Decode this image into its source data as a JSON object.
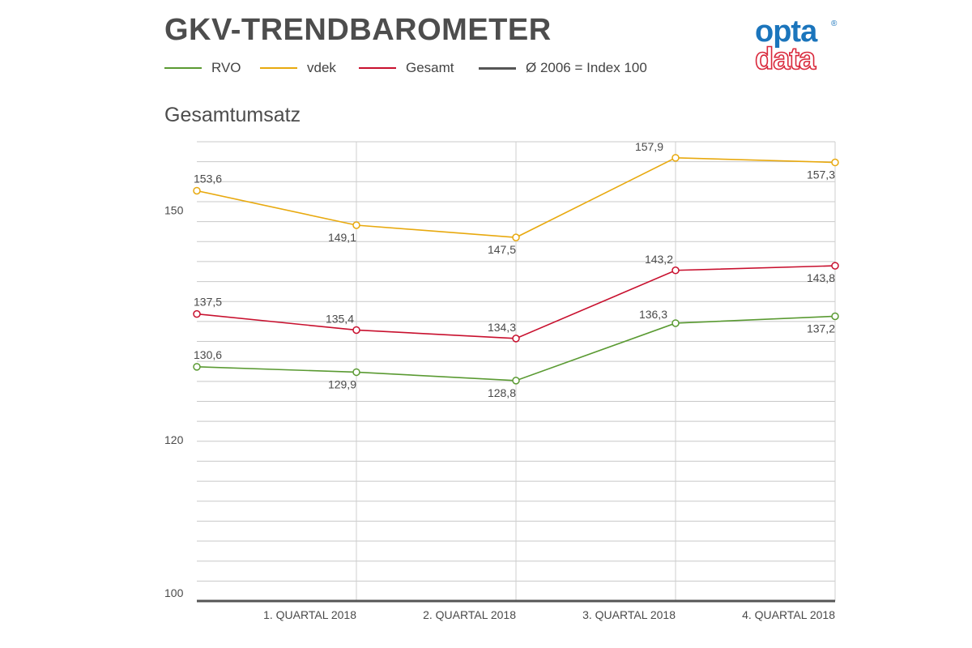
{
  "header": {
    "title": "GKV-TRENDBAROMETER",
    "subtitle": "Gesamtumsatz"
  },
  "logo": {
    "top": "opta",
    "bottom": "data",
    "registered": "®",
    "colors": {
      "top": "#1b75bc",
      "bottom": "#d9283b"
    }
  },
  "legend": [
    {
      "label": "RVO",
      "color": "#5a9a32"
    },
    {
      "label": "vdek",
      "color": "#e8a90e"
    },
    {
      "label": "Gesamt",
      "color": "#c8102e"
    },
    {
      "label": "Ø 2006 = Index 100",
      "color": "#555555"
    }
  ],
  "chart_data": {
    "type": "line",
    "categories": [
      "",
      "1. QUARTAL 2018",
      "2. QUARTAL 2018",
      "3. QUARTAL 2018",
      "4. QUARTAL 2018"
    ],
    "ylim": [
      100,
      160
    ],
    "yticks": [
      {
        "value": 100,
        "label": "100"
      },
      {
        "value": 120,
        "label": "120"
      },
      {
        "value": 150,
        "label": "150"
      }
    ],
    "grid": true,
    "legend_position": "top",
    "series": [
      {
        "name": "vdek",
        "color": "#e8a90e",
        "values": [
          153.6,
          149.1,
          147.5,
          157.9,
          157.3
        ],
        "labels": [
          "153,6",
          "149,1",
          "147,5",
          "157,9",
          "157,3"
        ]
      },
      {
        "name": "Gesamt",
        "color": "#c8102e",
        "values": [
          137.5,
          135.4,
          134.3,
          143.2,
          143.8
        ],
        "labels": [
          "137,5",
          "135,4",
          "134,3",
          "143,2",
          "143,8"
        ]
      },
      {
        "name": "RVO",
        "color": "#5a9a32",
        "values": [
          130.6,
          129.9,
          128.8,
          136.3,
          137.2
        ],
        "labels": [
          "130,6",
          "129,9",
          "128,8",
          "136,3",
          "137,2"
        ]
      }
    ]
  }
}
